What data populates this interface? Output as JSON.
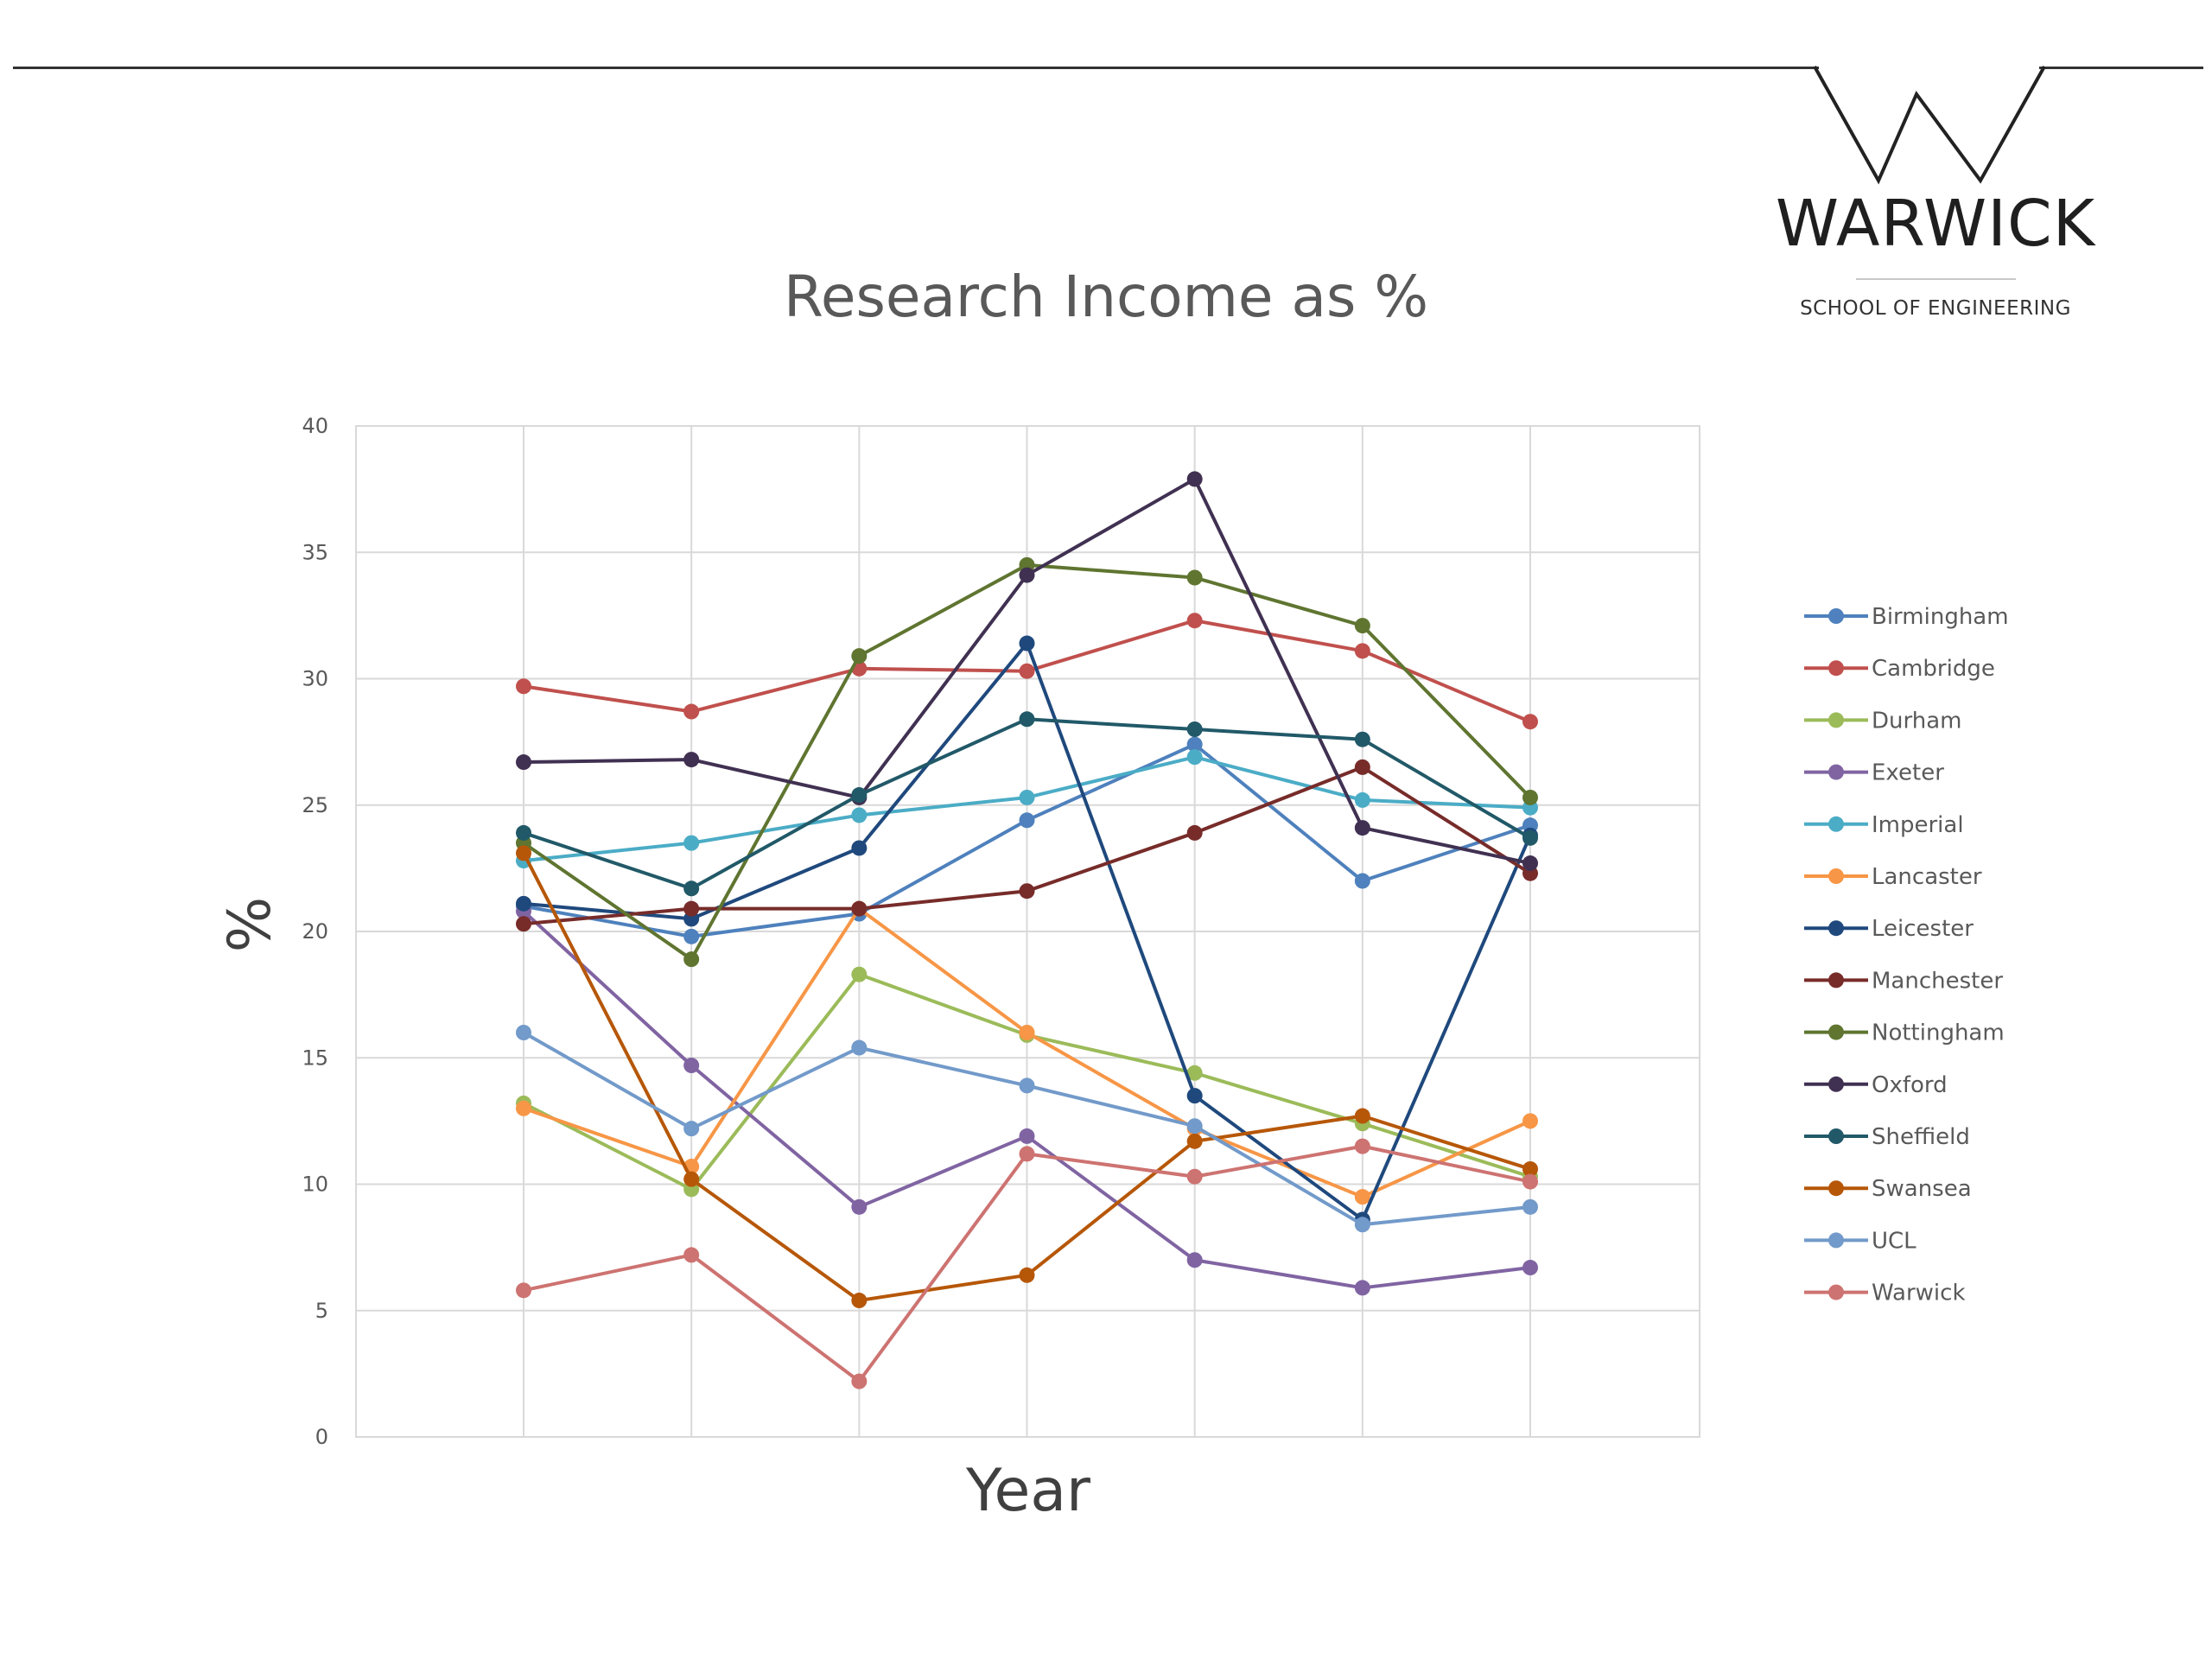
{
  "branding": {
    "name": "WARWICK",
    "subtitle": "SCHOOL OF ENGINEERING"
  },
  "chart_data": {
    "type": "line",
    "title": "Research Income as %",
    "xlabel": "Year",
    "ylabel": "%",
    "ylim": [
      0,
      40
    ],
    "yticks": [
      0,
      5,
      10,
      15,
      20,
      25,
      30,
      35,
      40
    ],
    "x": [
      1,
      2,
      3,
      4,
      5,
      6,
      7
    ],
    "grid": true,
    "legend_position": "right",
    "series": [
      {
        "name": "Birmingham",
        "color": "#4e81bd",
        "values": [
          21.0,
          19.8,
          20.7,
          24.4,
          27.4,
          22.0,
          24.2
        ]
      },
      {
        "name": "Cambridge",
        "color": "#c0504d",
        "values": [
          29.7,
          28.7,
          30.4,
          30.3,
          32.3,
          31.1,
          28.3
        ]
      },
      {
        "name": "Durham",
        "color": "#9bbb59",
        "values": [
          13.2,
          9.8,
          18.3,
          15.9,
          14.4,
          12.4,
          10.3
        ]
      },
      {
        "name": "Exeter",
        "color": "#8064a2",
        "values": [
          20.8,
          14.7,
          9.1,
          11.9,
          7.0,
          5.9,
          6.7
        ]
      },
      {
        "name": "Imperial",
        "color": "#4bacc6",
        "values": [
          22.8,
          23.5,
          24.6,
          25.3,
          26.9,
          25.2,
          24.9
        ]
      },
      {
        "name": "Lancaster",
        "color": "#f79646",
        "values": [
          13.0,
          10.7,
          20.9,
          16.0,
          12.2,
          9.5,
          12.5
        ]
      },
      {
        "name": "Leicester",
        "color": "#1f497d",
        "values": [
          21.1,
          20.5,
          23.3,
          31.4,
          13.5,
          8.6,
          23.8
        ]
      },
      {
        "name": "Manchester",
        "color": "#772c2a",
        "values": [
          20.3,
          20.9,
          20.9,
          21.6,
          23.9,
          26.5,
          22.3
        ]
      },
      {
        "name": "Nottingham",
        "color": "#5f7530",
        "values": [
          23.5,
          18.9,
          30.9,
          34.5,
          34.0,
          32.1,
          25.3
        ]
      },
      {
        "name": "Oxford",
        "color": "#403152",
        "values": [
          26.7,
          26.8,
          25.3,
          34.1,
          37.9,
          24.1,
          22.7
        ]
      },
      {
        "name": "Sheffield",
        "color": "#215968",
        "values": [
          23.9,
          21.7,
          25.4,
          28.4,
          28.0,
          27.6,
          23.7
        ]
      },
      {
        "name": "Swansea",
        "color": "#b65708",
        "values": [
          23.1,
          10.2,
          5.4,
          6.4,
          11.7,
          12.7,
          10.6
        ]
      },
      {
        "name": "UCL",
        "color": "#729aca",
        "values": [
          16.0,
          12.2,
          15.4,
          13.9,
          12.3,
          8.4,
          9.1
        ]
      },
      {
        "name": "Warwick",
        "color": "#cd7371",
        "values": [
          5.8,
          7.2,
          2.2,
          11.2,
          10.3,
          11.5,
          10.1
        ]
      }
    ]
  }
}
